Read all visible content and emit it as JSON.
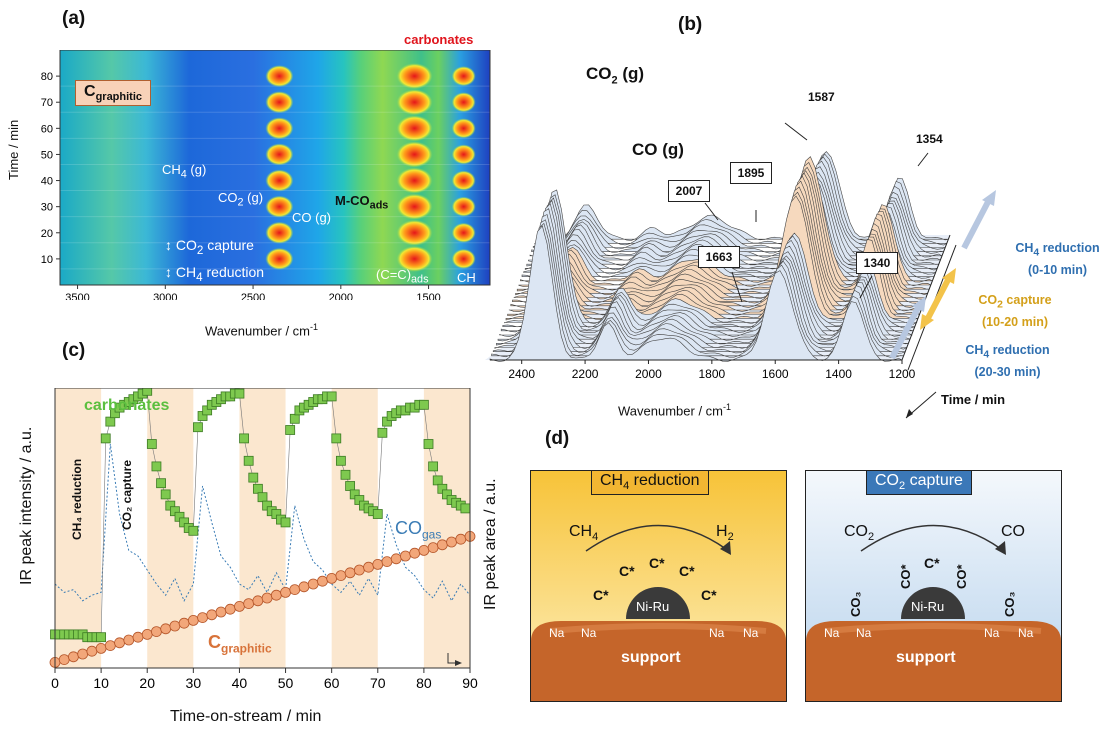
{
  "panels": {
    "a": "(a)",
    "b": "(b)",
    "c": "(c)",
    "d": "(d)"
  },
  "colors": {
    "orange": "#f5a24b",
    "blue": "#3a7cb5",
    "green": "#5bbf3f",
    "beige": "#fbe7cf",
    "gold": "#e8b92e"
  },
  "panel_a": {
    "ylabel": "Time / min",
    "xlabel": "Wavenumber / cm",
    "xlabel_sup": "-1",
    "xticks": [
      "3500",
      "3000",
      "2500",
      "2000",
      "1500"
    ],
    "yticks": [
      "80",
      "70",
      "60",
      "50",
      "40",
      "30",
      "20",
      "10"
    ],
    "graphitic_main": "C",
    "graphitic_sub": "graphitic",
    "carbonates": "carbonates",
    "ch4_main": "CH",
    "ch4_sub": "4",
    "ch4_tail": " (g)",
    "co2_main": "CO",
    "co2_sub": "2",
    "co2_tail": " (g)",
    "mco_main": "M-CO",
    "mco_sub": "ads",
    "co": "CO (g)",
    "capture_main": "CO",
    "capture_sub": "2",
    "capture_tail": " capture",
    "reduction_main": "CH",
    "reduction_sub": "4",
    "reduction_tail": " reduction",
    "cc_main": "(C=C)",
    "cc_sub": "ads",
    "ch": "CH"
  },
  "panel_b": {
    "co2_main": "CO",
    "co2_sub": "2",
    "co2_tail": " (g)",
    "co": "CO (g)",
    "peaks": [
      "1587",
      "1354",
      "2007",
      "1895",
      "1663",
      "1340"
    ],
    "xticks": [
      "2400",
      "2200",
      "2000",
      "1800",
      "1600",
      "1400",
      "1200"
    ],
    "xlabel": "Wavenumber / cm",
    "xlabel_sup": "-1",
    "time_label": "Time / min",
    "legend": [
      {
        "main": "CH",
        "sub": "4",
        "tail": " reduction",
        "range": "(0-10 min)"
      },
      {
        "main": "CO",
        "sub": "2",
        "tail": " capture",
        "range": "(10-20 min)"
      },
      {
        "main": "CH",
        "sub": "4",
        "tail": " reduction",
        "range": "(20-30 min)"
      }
    ]
  },
  "panel_c": {
    "ylabel_left": "IR peak intensity / a.u.",
    "ylabel_right": "IR peak area / a.u.",
    "xlabel": "Time-on-stream / min",
    "xticks": [
      "0",
      "10",
      "20",
      "30",
      "40",
      "50",
      "60",
      "70",
      "80",
      "90"
    ],
    "carbonates": "carbonates",
    "co_main": "CO",
    "co_sub": "gas",
    "cg_main": "C",
    "cg_sub": "graphitic",
    "ch4_label": "CH₄ reduction",
    "co2_label": "CO₂ capture"
  },
  "panel_d": {
    "left": {
      "title_main": "CH",
      "title_sub": "4",
      "title_tail": " reduction",
      "reactant_main": "CH",
      "reactant_sub": "4",
      "product_main": "H",
      "product_sub": "2",
      "cstar": "C*",
      "metal": "Ni-Ru",
      "support": "support",
      "na": "Na"
    },
    "right": {
      "title_main": "CO",
      "title_sub": "2",
      "title_tail": " capture",
      "reactant_main": "CO",
      "reactant_sub": "2",
      "product": "CO",
      "co3": "CO₃",
      "costar": "CO*",
      "cstar": "C*",
      "metal": "Ni-Ru",
      "support": "support",
      "na": "Na"
    }
  },
  "chart_data": [
    {
      "type": "heatmap",
      "title": "(a)",
      "xlabel": "Wavenumber / cm-1",
      "ylabel": "Time / min",
      "xlim": [
        3600,
        1150
      ],
      "ylim": [
        0,
        90
      ],
      "x_ticks": [
        3500,
        3000,
        2500,
        2000,
        1500
      ],
      "y_ticks": [
        10,
        20,
        30,
        40,
        50,
        60,
        70,
        80
      ],
      "bands": [
        {
          "label": "carbonates",
          "x": 1580
        },
        {
          "label": "CO2 (g)",
          "x": 2350
        },
        {
          "label": "M-COads",
          "x": 1900
        },
        {
          "label": "CH",
          "x": 1300
        },
        {
          "label": "Cgraphitic",
          "x": 3300
        }
      ]
    },
    {
      "type": "line",
      "title": "(b)",
      "xlabel": "Wavenumber / cm-1",
      "zlabel": "Time / min",
      "xlim": [
        2500,
        1200
      ],
      "x_ticks": [
        2400,
        2200,
        2000,
        1800,
        1600,
        1400,
        1200
      ],
      "annotated_peaks": [
        2007,
        1895,
        1663,
        1587,
        1354,
        1340
      ]
    },
    {
      "type": "scatter",
      "title": "(c)",
      "xlabel": "Time-on-stream / min",
      "ylabel": "IR peak intensity / a.u.",
      "y2label": "IR peak area / a.u.",
      "xlim": [
        0,
        90
      ],
      "x_ticks": [
        0,
        10,
        20,
        30,
        40,
        50,
        60,
        70,
        80,
        90
      ],
      "shaded_intervals": [
        [
          0,
          10
        ],
        [
          20,
          30
        ],
        [
          40,
          50
        ],
        [
          60,
          70
        ],
        [
          80,
          90
        ]
      ],
      "series": [
        {
          "name": "carbonates",
          "x": [
            0,
            1,
            2,
            3,
            4,
            5,
            6,
            7,
            8,
            9,
            10,
            11,
            12,
            13,
            14,
            15,
            16,
            17,
            18,
            19,
            20,
            21,
            22,
            23,
            24,
            25,
            26,
            27,
            28,
            29,
            30,
            31,
            32,
            33,
            34,
            35,
            36,
            37,
            38,
            39,
            40,
            41,
            42,
            43,
            44,
            45,
            46,
            47,
            48,
            49,
            50,
            51,
            52,
            53,
            54,
            55,
            56,
            57,
            58,
            59,
            60,
            61,
            62,
            63,
            64,
            65,
            66,
            67,
            68,
            69,
            70,
            71,
            72,
            73,
            74,
            75,
            76,
            77,
            78,
            79,
            80,
            81,
            82,
            83,
            84,
            85,
            86,
            87,
            88,
            89
          ],
          "y": [
            0.12,
            0.12,
            0.12,
            0.12,
            0.12,
            0.12,
            0.12,
            0.11,
            0.11,
            0.11,
            0.11,
            0.82,
            0.88,
            0.91,
            0.93,
            0.94,
            0.95,
            0.96,
            0.97,
            0.98,
            0.99,
            0.8,
            0.72,
            0.66,
            0.62,
            0.58,
            0.56,
            0.54,
            0.52,
            0.5,
            0.49,
            0.86,
            0.9,
            0.92,
            0.94,
            0.95,
            0.96,
            0.97,
            0.97,
            0.98,
            0.98,
            0.82,
            0.74,
            0.68,
            0.64,
            0.61,
            0.58,
            0.56,
            0.55,
            0.53,
            0.52,
            0.85,
            0.89,
            0.92,
            0.93,
            0.94,
            0.95,
            0.96,
            0.96,
            0.97,
            0.97,
            0.82,
            0.74,
            0.69,
            0.65,
            0.62,
            0.6,
            0.58,
            0.57,
            0.56,
            0.55,
            0.84,
            0.88,
            0.9,
            0.91,
            0.92,
            0.92,
            0.93,
            0.93,
            0.94,
            0.94,
            0.8,
            0.72,
            0.67,
            0.64,
            0.62,
            0.6,
            0.59,
            0.58,
            0.57
          ]
        },
        {
          "name": "COgas",
          "x": [
            0,
            2,
            4,
            6,
            8,
            10,
            12,
            14,
            16,
            18,
            20,
            22,
            24,
            26,
            28,
            30,
            32,
            34,
            36,
            38,
            40,
            42,
            44,
            46,
            48,
            50,
            52,
            54,
            56,
            58,
            60,
            62,
            64,
            66,
            68,
            70,
            72,
            74,
            76,
            78,
            80,
            82,
            84,
            86,
            88,
            90
          ],
          "y": [
            0.3,
            0.27,
            0.28,
            0.24,
            0.26,
            0.27,
            0.8,
            0.55,
            0.42,
            0.4,
            0.35,
            0.3,
            0.26,
            0.32,
            0.24,
            0.3,
            0.65,
            0.52,
            0.4,
            0.36,
            0.3,
            0.28,
            0.33,
            0.27,
            0.34,
            0.28,
            0.58,
            0.46,
            0.38,
            0.35,
            0.3,
            0.27,
            0.31,
            0.26,
            0.32,
            0.26,
            0.55,
            0.44,
            0.36,
            0.33,
            0.28,
            0.25,
            0.31,
            0.24,
            0.3,
            0.26
          ]
        },
        {
          "name": "Cgraphitic",
          "x": [
            0,
            2,
            4,
            6,
            8,
            10,
            12,
            14,
            16,
            18,
            20,
            22,
            24,
            26,
            28,
            30,
            32,
            34,
            36,
            38,
            40,
            42,
            44,
            46,
            48,
            50,
            52,
            54,
            56,
            58,
            60,
            62,
            64,
            66,
            68,
            70,
            72,
            74,
            76,
            78,
            80,
            82,
            84,
            86,
            88,
            90
          ],
          "y": [
            0.02,
            0.03,
            0.04,
            0.05,
            0.06,
            0.07,
            0.08,
            0.09,
            0.1,
            0.11,
            0.12,
            0.13,
            0.14,
            0.15,
            0.16,
            0.17,
            0.18,
            0.19,
            0.2,
            0.21,
            0.22,
            0.23,
            0.24,
            0.25,
            0.26,
            0.27,
            0.28,
            0.29,
            0.3,
            0.31,
            0.32,
            0.33,
            0.34,
            0.35,
            0.36,
            0.37,
            0.38,
            0.39,
            0.4,
            0.41,
            0.42,
            0.43,
            0.44,
            0.45,
            0.46,
            0.47
          ]
        }
      ]
    }
  ]
}
